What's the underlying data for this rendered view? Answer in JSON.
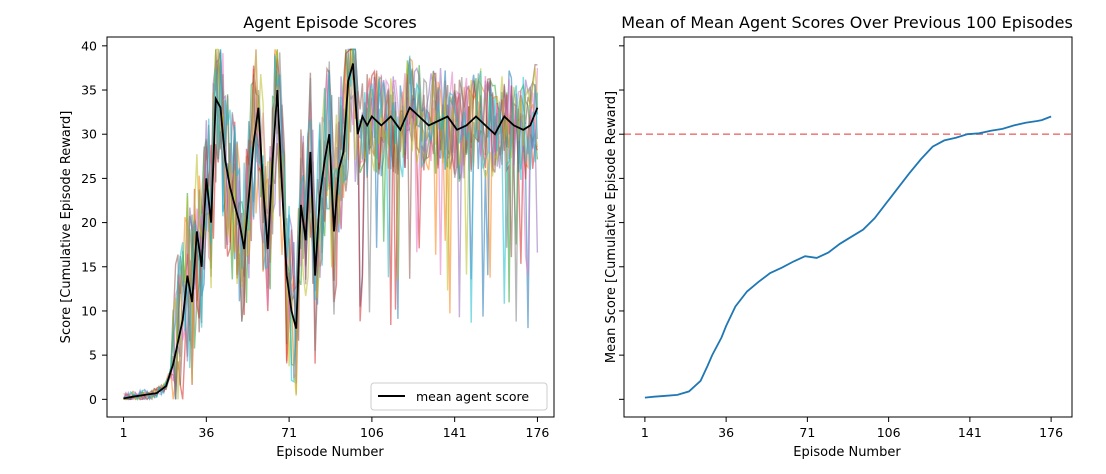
{
  "chart_data": [
    {
      "type": "line",
      "title": "Agent Episode Scores",
      "xlabel": "Episode Number",
      "ylabel": "Score [Cumulative Episode Reward]",
      "xticks": [
        1,
        36,
        71,
        106,
        141,
        176
      ],
      "yticks": [
        0,
        5,
        10,
        15,
        20,
        25,
        30,
        35,
        40
      ],
      "xlim": [
        -6,
        183
      ],
      "ylim": [
        -2,
        41
      ],
      "legend": {
        "position": "lower-right",
        "entries": [
          {
            "label": "mean agent score",
            "color": "#000000"
          }
        ]
      },
      "series": [
        {
          "name": "mean agent score",
          "color": "#000000",
          "x": [
            1,
            5,
            10,
            15,
            19,
            22,
            24,
            26,
            28,
            30,
            32,
            34,
            36,
            38,
            40,
            42,
            44,
            46,
            48,
            50,
            52,
            54,
            56,
            58,
            60,
            62,
            64,
            66,
            68,
            70,
            72,
            74,
            76,
            78,
            80,
            82,
            84,
            86,
            88,
            90,
            92,
            94,
            96,
            98,
            100,
            102,
            104,
            106,
            110,
            114,
            118,
            122,
            126,
            130,
            134,
            138,
            142,
            146,
            150,
            154,
            158,
            162,
            166,
            170,
            173,
            176
          ],
          "y": [
            0.1,
            0.3,
            0.5,
            0.7,
            1.5,
            4.0,
            6.5,
            9.0,
            14.0,
            11.0,
            19.0,
            15.0,
            25.0,
            20.0,
            34.0,
            33.0,
            27.0,
            24.0,
            22.0,
            20.0,
            17.0,
            23.0,
            29.0,
            33.0,
            24.0,
            17.0,
            27.0,
            35.0,
            24.0,
            14.0,
            10.0,
            8.0,
            22.0,
            18.0,
            28.0,
            14.0,
            23.0,
            27.0,
            30.0,
            19.0,
            26.0,
            28.0,
            36.0,
            38.0,
            30.0,
            32.0,
            31.0,
            32.0,
            31.0,
            32.0,
            30.5,
            33.0,
            32.0,
            31.0,
            31.5,
            32.0,
            30.5,
            31.0,
            32.0,
            31.0,
            30.0,
            32.0,
            31.0,
            30.5,
            31.0,
            33.0
          ]
        }
      ],
      "agent_series_note": "",
      "agent_colors": [
        "#1f77b4",
        "#ff7f0e",
        "#2ca02c",
        "#d62728",
        "#9467bd",
        "#8c564b",
        "#e377c2",
        "#7f7f7f",
        "#bcbd22",
        "#17becf"
      ]
    },
    {
      "type": "line",
      "title": "Mean of Mean Agent Scores Over Previous 100 Episodes",
      "xlabel": "Episode Number",
      "ylabel": "Mean Score [Cumulative Episode Reward]",
      "xticks": [
        1,
        36,
        71,
        106,
        141,
        176
      ],
      "xlim": [
        -8,
        185
      ],
      "ylim": [
        -2,
        41
      ],
      "threshold": {
        "value": 30,
        "color": "#f08080",
        "style": "dashed"
      },
      "series": [
        {
          "name": "",
          "color": "#1f77b4",
          "x": [
            1,
            5,
            10,
            15,
            20,
            25,
            28,
            30,
            34,
            36,
            40,
            45,
            50,
            55,
            60,
            65,
            70,
            75,
            80,
            85,
            90,
            95,
            100,
            105,
            110,
            115,
            120,
            125,
            130,
            135,
            140,
            145,
            150,
            155,
            160,
            165,
            170,
            172,
            176
          ],
          "y": [
            0.2,
            0.3,
            0.4,
            0.5,
            0.9,
            2.1,
            3.8,
            5.0,
            7.0,
            8.3,
            10.5,
            12.2,
            13.3,
            14.3,
            14.9,
            15.6,
            16.2,
            16.0,
            16.6,
            17.6,
            18.4,
            19.2,
            20.5,
            22.2,
            23.9,
            25.6,
            27.2,
            28.6,
            29.3,
            29.6,
            30.0,
            30.1,
            30.4,
            30.6,
            31.0,
            31.3,
            31.5,
            31.6,
            32.0
          ]
        }
      ]
    }
  ]
}
